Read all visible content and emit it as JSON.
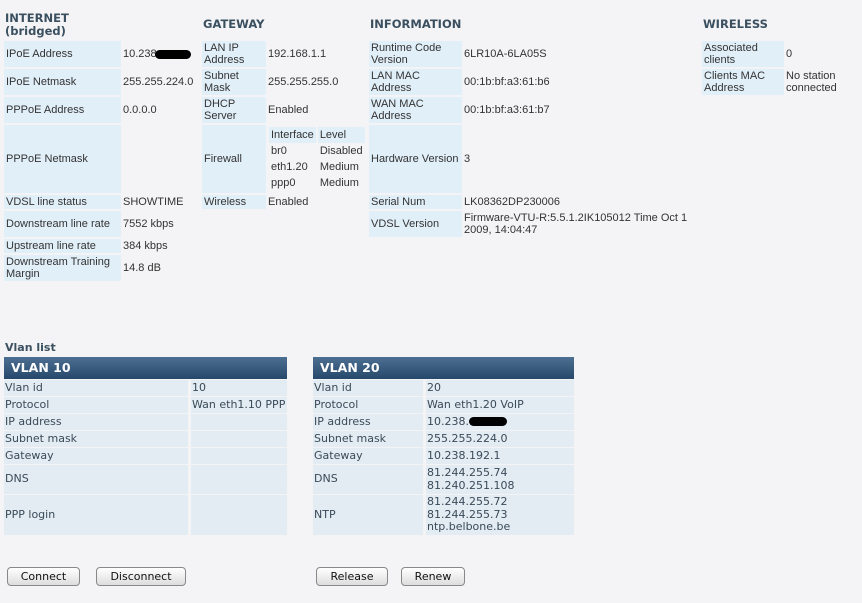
{
  "internet": {
    "title": "INTERNET",
    "subtitle": "(bridged)",
    "rows": [
      {
        "label": "IPoE Address",
        "value": "10.238",
        "redacted": true
      },
      {
        "label": "IPoE Netmask",
        "value": "255.255.224.0"
      },
      {
        "label": "PPPoE Address",
        "value": "0.0.0.0"
      },
      {
        "label": "PPPoE Netmask",
        "value": ""
      },
      {
        "label": "VDSL line status",
        "value": "SHOWTIME"
      },
      {
        "label": "Downstream line rate",
        "value": "7552 kbps"
      },
      {
        "label": "Upstream line rate",
        "value": "384 kbps"
      },
      {
        "label": "Downstream Training Margin",
        "value": "14.8 dB"
      }
    ]
  },
  "gateway": {
    "title": "GATEWAY",
    "rows": [
      {
        "label": "LAN IP Address",
        "value": "192.168.1.1"
      },
      {
        "label": "Subnet Mask",
        "value": "255.255.255.0"
      },
      {
        "label": "DHCP Server",
        "value": "Enabled"
      },
      {
        "label": "Firewall"
      },
      {
        "label": "Wireless",
        "value": "Enabled"
      }
    ],
    "firewall": {
      "headers": [
        "Interface",
        "Level"
      ],
      "rows": [
        [
          "br0",
          "Disabled"
        ],
        [
          "eth1.20",
          "Medium"
        ],
        [
          "ppp0",
          "Medium"
        ]
      ]
    }
  },
  "information": {
    "title": "INFORMATION",
    "rows": [
      {
        "label": "Runtime Code Version",
        "value": "6LR10A-6LA05S"
      },
      {
        "label": "LAN MAC Address",
        "value": "00:1b:bf:a3:61:b6"
      },
      {
        "label": "WAN MAC Address",
        "value": "00:1b:bf:a3:61:b7"
      },
      {
        "label": "Hardware Version",
        "value": "3"
      },
      {
        "label": "Serial Num",
        "value": "LK08362DP230006"
      },
      {
        "label": "VDSL Version",
        "value": "Firmware-VTU-R:5.5.1.2IK105012 Time Oct 1 2009, 14:04:47"
      }
    ]
  },
  "wireless": {
    "title": "WIRELESS",
    "rows": [
      {
        "label": "Associated clients",
        "value": "0"
      },
      {
        "label": "Clients MAC Address",
        "value": "No station connected"
      }
    ]
  },
  "vlan_list": {
    "title": "Vlan list",
    "vlans": [
      {
        "title": "VLAN 10",
        "rows": [
          [
            "Vlan id",
            "10"
          ],
          [
            "Protocol",
            "Wan eth1.10 PPP"
          ],
          [
            "IP address",
            ""
          ],
          [
            "Subnet mask",
            ""
          ],
          [
            "Gateway",
            ""
          ],
          [
            "DNS",
            ""
          ],
          [
            "PPP login",
            ""
          ]
        ]
      },
      {
        "title": "VLAN 20",
        "rows": [
          [
            "Vlan id",
            "20"
          ],
          [
            "Protocol",
            "Wan eth1.20 VoIP"
          ],
          [
            "IP address",
            "10.238."
          ],
          [
            "Subnet mask",
            "255.255.224.0"
          ],
          [
            "Gateway",
            "10.238.192.1"
          ],
          [
            "DNS",
            "81.244.255.74\n81.240.251.108"
          ],
          [
            "NTP",
            "81.244.255.72\n81.244.255.73\nntp.belbone.be"
          ]
        ]
      }
    ]
  },
  "buttons": {
    "connect": "Connect",
    "disconnect": "Disconnect",
    "release": "Release",
    "renew": "Renew"
  }
}
